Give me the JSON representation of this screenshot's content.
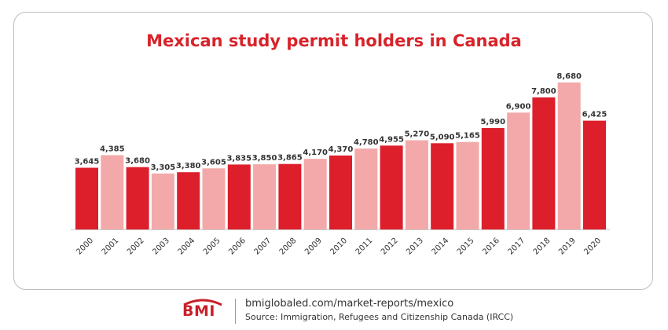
{
  "chart_data": {
    "type": "bar",
    "title": "Mexican study permit holders in Canada",
    "categories": [
      "2000",
      "2001",
      "2002",
      "2003",
      "2004",
      "2005",
      "2006",
      "2007",
      "2008",
      "2009",
      "2010",
      "2011",
      "2012",
      "2013",
      "2014",
      "2015",
      "2016",
      "2017",
      "2018",
      "2019",
      "2020"
    ],
    "values": [
      3645,
      4385,
      3680,
      3305,
      3380,
      3605,
      3835,
      3850,
      3865,
      4170,
      4370,
      4780,
      4955,
      5270,
      5090,
      5165,
      5990,
      6900,
      7800,
      8680,
      6425
    ],
    "value_labels": [
      "3,645",
      "4,385",
      "3,680",
      "3,305",
      "3,380",
      "3,605",
      "3,835",
      "3,850",
      "3,865",
      "4,170",
      "4,370",
      "4,780",
      "4,955",
      "5,270",
      "5,090",
      "5,165",
      "5,990",
      "6,900",
      "7,800",
      "8,680",
      "6,425"
    ],
    "bar_colors": [
      "#dc1f2b",
      "#f3a9a9",
      "#dc1f2b",
      "#f3a9a9",
      "#dc1f2b",
      "#f3a9a9",
      "#dc1f2b",
      "#f3a9a9",
      "#dc1f2b",
      "#f3a9a9",
      "#dc1f2b",
      "#f3a9a9",
      "#dc1f2b",
      "#f3a9a9",
      "#dc1f2b",
      "#f3a9a9",
      "#dc1f2b",
      "#f3a9a9",
      "#dc1f2b",
      "#f3a9a9",
      "#dc1f2b"
    ],
    "xlabel": "",
    "ylabel": "",
    "ylim": [
      0,
      8680
    ],
    "grid": false,
    "legend": "none"
  },
  "colors": {
    "title": "#d8232a",
    "bar_dark": "#dc1f2b",
    "bar_light": "#f3a9a9"
  },
  "footer": {
    "logo_text": "BMI",
    "url": "bmiglobaled.com/market-reports/mexico",
    "source": "Source: Immigration, Refugees and Citizenship Canada (IRCC)"
  }
}
